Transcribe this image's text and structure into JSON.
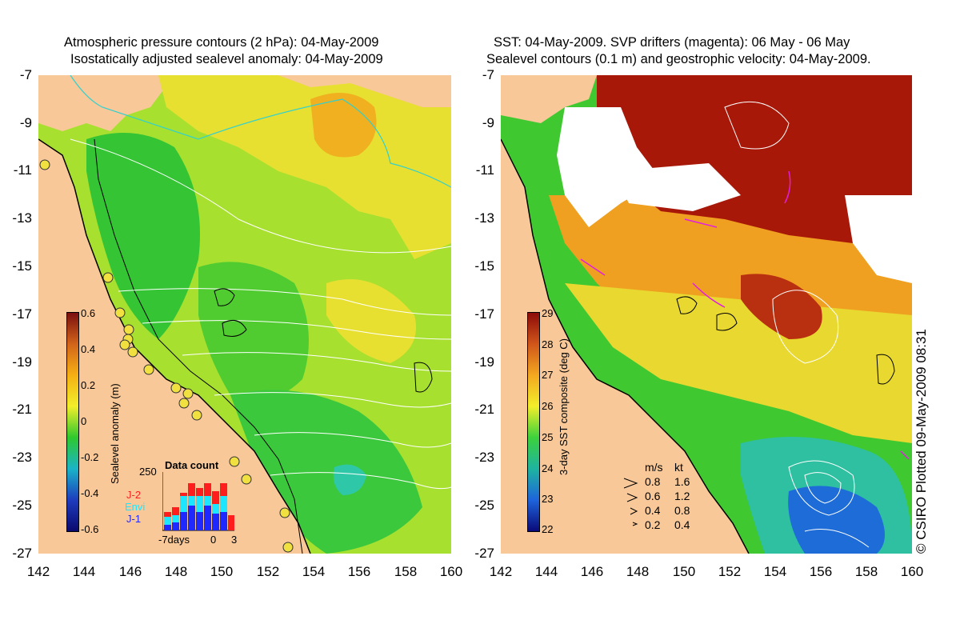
{
  "left": {
    "title_line1": "Atmospheric pressure contours (2 hPa): 04-May-2009",
    "title_line2": "Isostatically adjusted sealevel anomaly: 04-May-2009",
    "colorbar_label": "Sealevel anomaly (m)",
    "colorbar_ticks": [
      "0.6",
      "0.4",
      "0.2",
      "0",
      "-0.2",
      "-0.4",
      "-0.6"
    ],
    "colorbar_colors": [
      "#7a0f0f",
      "#d2641a",
      "#f5b014",
      "#f2ee2a",
      "#2ec82e",
      "#1ab4c8",
      "#1e3cbe",
      "#0a0a6e"
    ],
    "data_count": {
      "title": "Data count",
      "ymax_label": "250",
      "x_labels": [
        "-7days",
        "0",
        "3"
      ],
      "sat_labels": [
        "J-2",
        "Envi",
        "J-1"
      ],
      "sat_colors": [
        "#ff1e1e",
        "#1ee6ff",
        "#1e28ff"
      ]
    }
  },
  "right": {
    "title_line1": "SST: 04-May-2009. SVP drifters (magenta): 06 May - 06 May",
    "title_line2": "Sealevel contours (0.1 m) and geostrophic velocity: 04-May-2009.",
    "colorbar_label": "3-day SST composite (deg C)",
    "colorbar_ticks": [
      "29",
      "28",
      "27",
      "26",
      "25",
      "24",
      "23",
      "22"
    ],
    "colorbar_colors": [
      "#8c0a0a",
      "#d0561a",
      "#f3a820",
      "#f2ee2a",
      "#3cd23c",
      "#1eb4a0",
      "#1e64dc",
      "#0a0a78"
    ],
    "velocity_legend": {
      "units": [
        "m/s",
        "kt"
      ],
      "rows": [
        [
          "0.8",
          "1.6"
        ],
        [
          "0.6",
          "1.2"
        ],
        [
          "0.4",
          "0.8"
        ],
        [
          "0.2",
          "0.4"
        ]
      ]
    },
    "credit": "© CSIRO Plotted 09-May-2009 08:31"
  },
  "y_ticks": [
    "-7",
    "-9",
    "-11",
    "-13",
    "-15",
    "-17",
    "-19",
    "-21",
    "-23",
    "-25",
    "-27"
  ],
  "x_ticks": [
    "142",
    "144",
    "146",
    "148",
    "150",
    "152",
    "154",
    "156",
    "158",
    "160"
  ],
  "colors": {
    "land": "#f8c898",
    "ocean_left": "#8fdc2e",
    "ocean_right_warm": "#a81808",
    "cloud": "#ffffff",
    "drifter": "#e01ee0",
    "station_marker": "#f0e040"
  }
}
